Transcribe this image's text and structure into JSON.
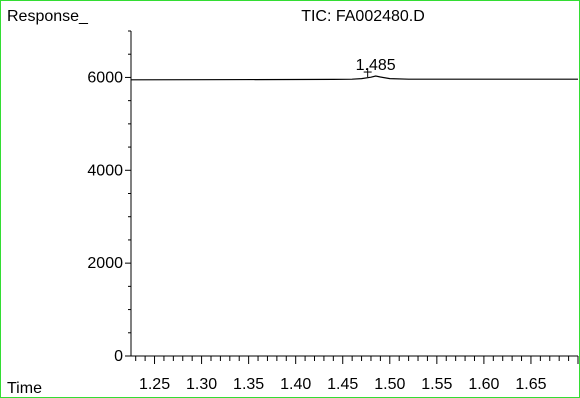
{
  "chart_data": {
    "type": "line",
    "title": "TIC: FA002480.D",
    "ylabel": "Response_",
    "xlabel": "Time",
    "xlim": [
      1.225,
      1.7
    ],
    "ylim": [
      0,
      7000
    ],
    "x_ticks": [
      1.25,
      1.3,
      1.35,
      1.4,
      1.45,
      1.5,
      1.55,
      1.6,
      1.65
    ],
    "x_tick_labels": [
      "1.25",
      "1.30",
      "1.35",
      "1.40",
      "1.45",
      "1.50",
      "1.55",
      "1.60",
      "1.65"
    ],
    "y_ticks": [
      0,
      2000,
      4000,
      6000
    ],
    "y_tick_labels": [
      "0",
      "2000",
      "4000",
      "6000"
    ],
    "grid": false,
    "series": [
      {
        "x": [
          1.225,
          1.3,
          1.4,
          1.44,
          1.46,
          1.47,
          1.48,
          1.485,
          1.49,
          1.5,
          1.52,
          1.55,
          1.6,
          1.65,
          1.7
        ],
        "y": [
          5950,
          5952,
          5955,
          5958,
          5962,
          5975,
          6005,
          6030,
          6010,
          5975,
          5962,
          5962,
          5962,
          5962,
          5962
        ]
      }
    ],
    "annotations": [
      {
        "label": "1.485",
        "x": 1.485,
        "y": 6030
      }
    ],
    "colors": {
      "line": "#000000",
      "frame": "#33dd33"
    }
  }
}
